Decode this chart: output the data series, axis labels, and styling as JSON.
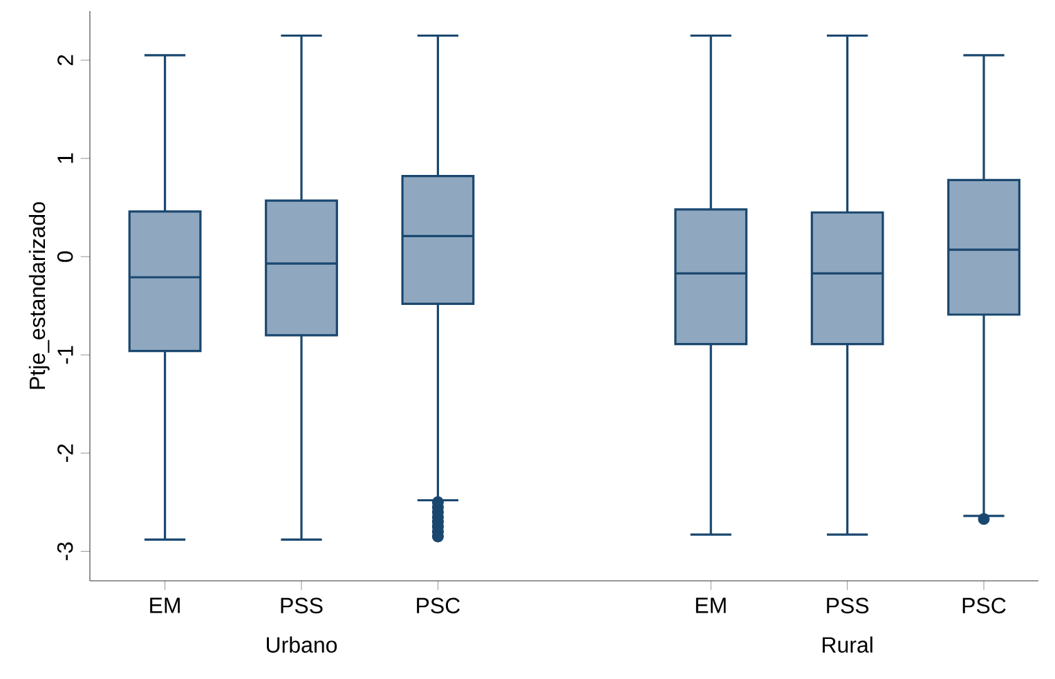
{
  "chart_data": {
    "type": "box",
    "ylabel": "Ptje_estandarizado",
    "categories": [
      "EM",
      "PSS",
      "PSC",
      null,
      "EM",
      "PSS",
      "PSC"
    ],
    "annotations": [
      "Urbano",
      "Rural"
    ],
    "ylim": [
      -3.3,
      2.5
    ],
    "yticks": [
      -3,
      -2,
      -1,
      0,
      1,
      2
    ],
    "grid": false,
    "series": [
      {
        "color": "#8fa8c0",
        "boxes": [
          {
            "low": -2.88,
            "q1": -0.96,
            "median": -0.21,
            "q3": 0.46,
            "high": 2.05
          },
          {
            "low": -2.88,
            "q1": -0.8,
            "median": -0.07,
            "q3": 0.57,
            "high": 2.25
          },
          {
            "low": -2.48,
            "q1": -0.48,
            "median": 0.21,
            "q3": 0.82,
            "high": 2.25,
            "outliers": [
              -2.5,
              -2.55,
              -2.6,
              -2.65,
              -2.7,
              -2.75,
              -2.8,
              -2.85
            ]
          },
          null,
          {
            "low": -2.83,
            "q1": -0.89,
            "median": -0.17,
            "q3": 0.48,
            "high": 2.25
          },
          {
            "low": -2.83,
            "q1": -0.89,
            "median": -0.17,
            "q3": 0.45,
            "high": 2.25
          },
          {
            "low": -2.64,
            "q1": -0.59,
            "median": 0.07,
            "q3": 0.78,
            "high": 2.05,
            "outliers": [
              -2.67
            ]
          }
        ]
      }
    ]
  }
}
